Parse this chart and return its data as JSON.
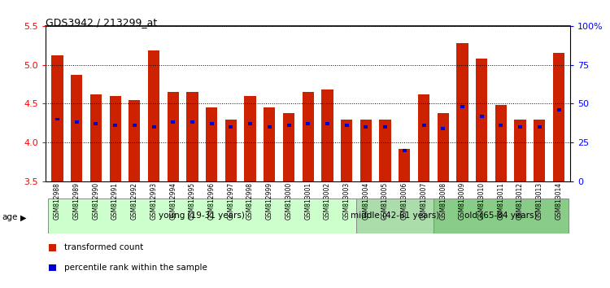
{
  "title": "GDS3942 / 213299_at",
  "samples": [
    "GSM812988",
    "GSM812989",
    "GSM812990",
    "GSM812991",
    "GSM812992",
    "GSM812993",
    "GSM812994",
    "GSM812995",
    "GSM812996",
    "GSM812997",
    "GSM812998",
    "GSM812999",
    "GSM813000",
    "GSM813001",
    "GSM813002",
    "GSM813003",
    "GSM813004",
    "GSM813005",
    "GSM813006",
    "GSM813007",
    "GSM813008",
    "GSM813009",
    "GSM813010",
    "GSM813011",
    "GSM813012",
    "GSM813013",
    "GSM813014"
  ],
  "transformed_count": [
    5.12,
    4.87,
    4.62,
    4.6,
    4.55,
    5.18,
    4.65,
    4.65,
    4.45,
    4.3,
    4.6,
    4.45,
    4.38,
    4.65,
    4.68,
    4.3,
    4.3,
    4.3,
    3.92,
    4.62,
    4.38,
    5.28,
    5.08,
    4.48,
    4.3,
    4.3,
    5.15
  ],
  "percentile_rank": [
    40,
    38,
    37,
    36,
    36,
    35,
    38,
    38,
    37,
    35,
    37,
    35,
    36,
    37,
    37,
    36,
    35,
    35,
    20,
    36,
    34,
    48,
    42,
    36,
    35,
    35,
    46
  ],
  "baseline": 3.5,
  "ylim_left": [
    3.5,
    5.5
  ],
  "ylim_right": [
    0,
    100
  ],
  "left_yticks": [
    3.5,
    4.0,
    4.5,
    5.0,
    5.5
  ],
  "right_yticks": [
    0,
    25,
    50,
    75,
    100
  ],
  "right_yticklabels": [
    "0",
    "25",
    "50",
    "75",
    "100%"
  ],
  "bar_color": "#CC2200",
  "percentile_color": "#0000CC",
  "age_groups": [
    {
      "label": "young (19-31 years)",
      "start": 0,
      "end": 16,
      "color": "#CCFFCC"
    },
    {
      "label": "middle (42-61 years)",
      "start": 16,
      "end": 20,
      "color": "#AADDAA"
    },
    {
      "label": "old (65-84 years)",
      "start": 20,
      "end": 27,
      "color": "#88CC88"
    }
  ],
  "legend_items": [
    {
      "label": "transformed count",
      "color": "#CC2200"
    },
    {
      "label": "percentile rank within the sample",
      "color": "#0000CC"
    }
  ],
  "bar_width": 0.6
}
